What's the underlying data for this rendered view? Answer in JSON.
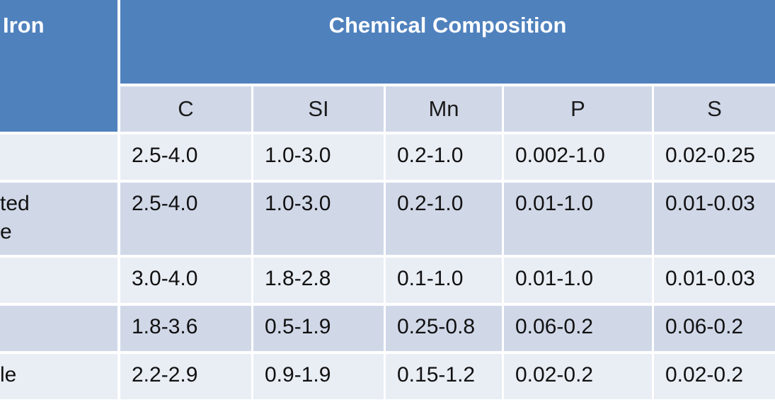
{
  "table": {
    "header_left": "Iron",
    "header_main": "Chemical Composition",
    "columns": [
      "C",
      "SI",
      "Mn",
      "P",
      "S"
    ],
    "rows": [
      {
        "name": [
          "",
          ""
        ],
        "values": [
          "2.5-4.0",
          "1.0-3.0",
          "0.2-1.0",
          "0.002-1.0",
          "0.02-0.25"
        ]
      },
      {
        "name": [
          "ted",
          "e"
        ],
        "values": [
          "2.5-4.0",
          "1.0-3.0",
          "0.2-1.0",
          "0.01-1.0",
          "0.01-0.03"
        ]
      },
      {
        "name": [
          "",
          ""
        ],
        "values": [
          "3.0-4.0",
          "1.8-2.8",
          "0.1-1.0",
          "0.01-1.0",
          "0.01-0.03"
        ]
      },
      {
        "name": [
          "",
          ""
        ],
        "values": [
          "1.8-3.6",
          "0.5-1.9",
          "0.25-0.8",
          "0.06-0.2",
          "0.06-0.2"
        ]
      },
      {
        "name": [
          "le",
          ""
        ],
        "values": [
          "2.2-2.9",
          "0.9-1.9",
          "0.15-1.2",
          "0.02-0.2",
          "0.02-0.2"
        ]
      }
    ]
  }
}
